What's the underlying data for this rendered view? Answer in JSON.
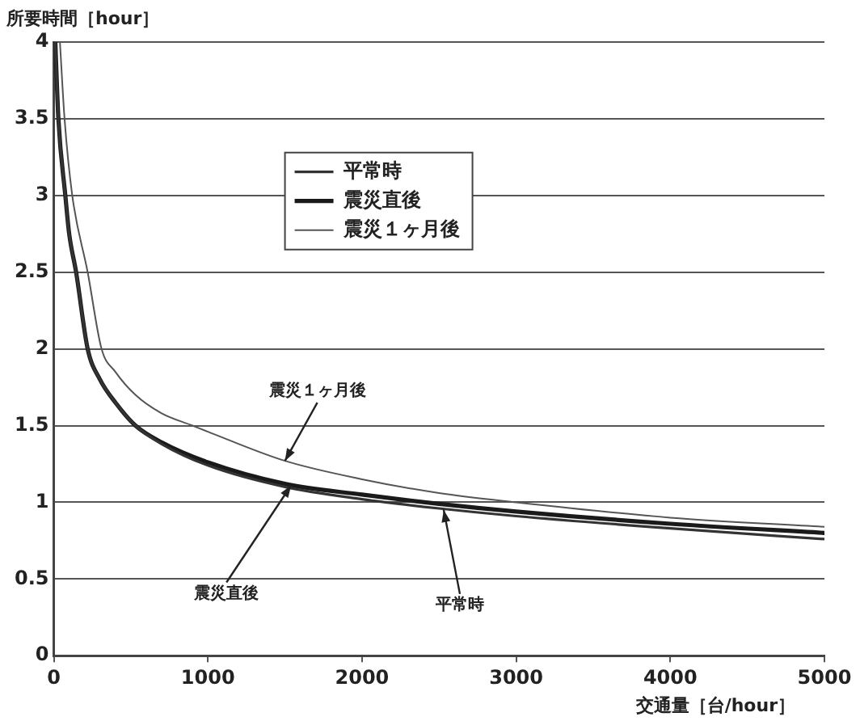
{
  "chart_data": {
    "type": "line",
    "xlabel": "交通量［台/hour］",
    "ylabel": "所要時間［hour］",
    "xlim": [
      0,
      5000
    ],
    "xticks": [
      0,
      1000,
      2000,
      3000,
      4000,
      5000
    ],
    "ylim": [
      0,
      4
    ],
    "yticks": [
      0,
      0.5,
      1,
      1.5,
      2,
      2.5,
      3,
      3.5,
      4
    ],
    "grid": "y",
    "legend": "top",
    "marker": "none",
    "line_style": "solid",
    "series": [
      {
        "name": "平常時",
        "color": "#333333",
        "x": [
          10,
          30,
          75,
          100,
          145,
          220,
          300,
          400,
          530,
          700,
          1000,
          1500,
          2000,
          2500,
          3000,
          4000,
          5000
        ],
        "values": [
          4.0,
          3.5,
          3.0,
          2.75,
          2.5,
          2.0,
          1.8,
          1.65,
          1.5,
          1.38,
          1.24,
          1.1,
          1.02,
          0.96,
          0.91,
          0.83,
          0.76
        ]
      },
      {
        "name": "震災直後",
        "color": "#1a1a1a",
        "x": [
          10,
          30,
          75,
          100,
          145,
          220,
          300,
          400,
          530,
          700,
          1000,
          1500,
          2000,
          2500,
          3000,
          4000,
          5000
        ],
        "values": [
          4.0,
          3.5,
          3.0,
          2.75,
          2.5,
          2.0,
          1.8,
          1.65,
          1.5,
          1.39,
          1.26,
          1.12,
          1.05,
          0.99,
          0.94,
          0.86,
          0.8
        ]
      },
      {
        "name": "震災１ヶ月後",
        "color": "#555555",
        "x": [
          40,
          70,
          120,
          220,
          310,
          400,
          530,
          700,
          900,
          1000,
          1500,
          2000,
          2500,
          3000,
          4000,
          5000
        ],
        "values": [
          4.0,
          3.5,
          3.0,
          2.5,
          2.0,
          1.85,
          1.7,
          1.58,
          1.5,
          1.46,
          1.27,
          1.15,
          1.06,
          1.0,
          0.9,
          0.84
        ]
      }
    ],
    "annotations": [
      {
        "text": "震災１ヶ月後",
        "x": 1500,
        "y": 1.27
      },
      {
        "text": "震災直後",
        "x": 1540,
        "y": 1.11
      },
      {
        "text": "平常時",
        "x": 2530,
        "y": 0.95
      }
    ]
  }
}
